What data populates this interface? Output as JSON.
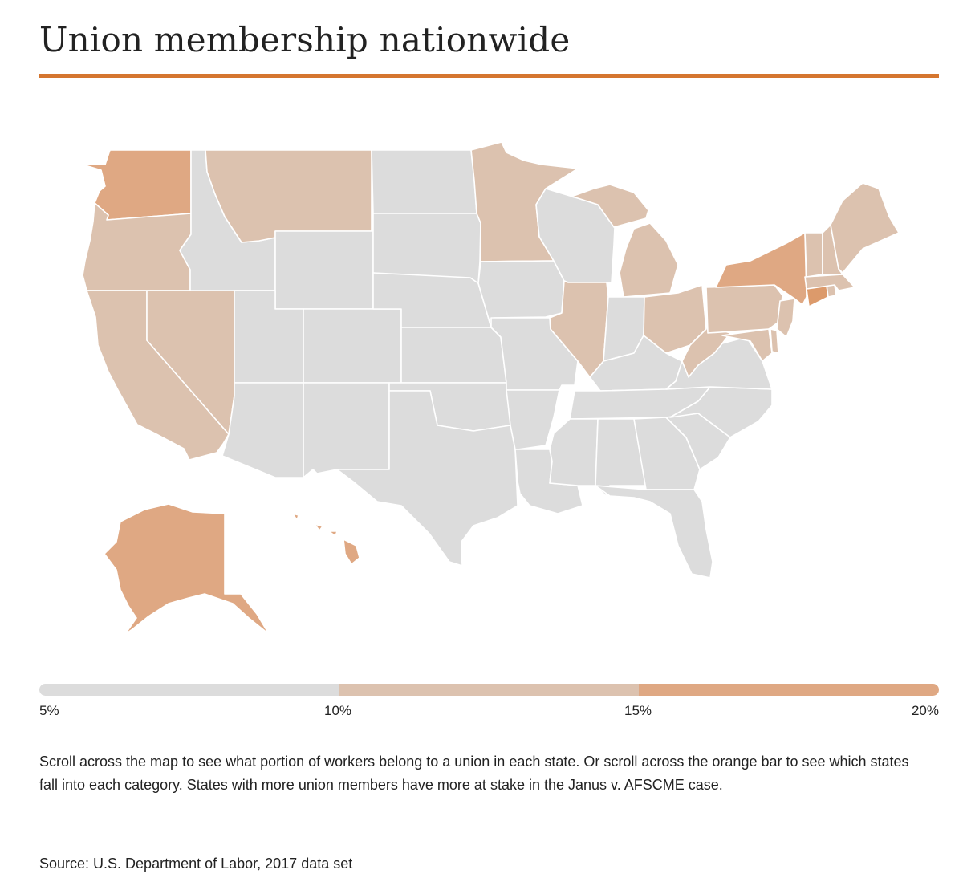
{
  "header": {
    "title": "Union membership nationwide"
  },
  "colors": {
    "accent": "#d5762f",
    "low": "#dcdcdc",
    "mid": "#dcc2af",
    "high": "#dfa883",
    "highest": "#dc9a6b"
  },
  "legend": {
    "ticks": [
      "5%",
      "10%",
      "15%",
      "20%"
    ],
    "bins": [
      {
        "from": 5,
        "to": 10,
        "color_key": "low"
      },
      {
        "from": 10,
        "to": 15,
        "color_key": "mid"
      },
      {
        "from": 15,
        "to": 20,
        "color_key": "high"
      }
    ]
  },
  "map": {
    "states": [
      {
        "abbr": "WA",
        "bin": "high"
      },
      {
        "abbr": "OR",
        "bin": "mid"
      },
      {
        "abbr": "CA",
        "bin": "mid"
      },
      {
        "abbr": "NV",
        "bin": "mid"
      },
      {
        "abbr": "ID",
        "bin": "low"
      },
      {
        "abbr": "MT",
        "bin": "mid"
      },
      {
        "abbr": "WY",
        "bin": "low"
      },
      {
        "abbr": "UT",
        "bin": "low"
      },
      {
        "abbr": "AZ",
        "bin": "low"
      },
      {
        "abbr": "CO",
        "bin": "low"
      },
      {
        "abbr": "NM",
        "bin": "low"
      },
      {
        "abbr": "ND",
        "bin": "low"
      },
      {
        "abbr": "SD",
        "bin": "low"
      },
      {
        "abbr": "NE",
        "bin": "low"
      },
      {
        "abbr": "KS",
        "bin": "low"
      },
      {
        "abbr": "OK",
        "bin": "low"
      },
      {
        "abbr": "TX",
        "bin": "low"
      },
      {
        "abbr": "MN",
        "bin": "mid"
      },
      {
        "abbr": "IA",
        "bin": "low"
      },
      {
        "abbr": "MO",
        "bin": "low"
      },
      {
        "abbr": "AR",
        "bin": "low"
      },
      {
        "abbr": "LA",
        "bin": "low"
      },
      {
        "abbr": "WI",
        "bin": "low"
      },
      {
        "abbr": "IL",
        "bin": "mid"
      },
      {
        "abbr": "MI",
        "bin": "mid"
      },
      {
        "abbr": "IN",
        "bin": "low"
      },
      {
        "abbr": "OH",
        "bin": "mid"
      },
      {
        "abbr": "KY",
        "bin": "low"
      },
      {
        "abbr": "TN",
        "bin": "low"
      },
      {
        "abbr": "MS",
        "bin": "low"
      },
      {
        "abbr": "AL",
        "bin": "low"
      },
      {
        "abbr": "GA",
        "bin": "low"
      },
      {
        "abbr": "FL",
        "bin": "low"
      },
      {
        "abbr": "SC",
        "bin": "low"
      },
      {
        "abbr": "NC",
        "bin": "low"
      },
      {
        "abbr": "VA",
        "bin": "low"
      },
      {
        "abbr": "WV",
        "bin": "mid"
      },
      {
        "abbr": "PA",
        "bin": "mid"
      },
      {
        "abbr": "NY",
        "bin": "high"
      },
      {
        "abbr": "NJ",
        "bin": "mid"
      },
      {
        "abbr": "DE",
        "bin": "mid"
      },
      {
        "abbr": "MD",
        "bin": "mid"
      },
      {
        "abbr": "CT",
        "bin": "highest"
      },
      {
        "abbr": "RI",
        "bin": "mid"
      },
      {
        "abbr": "MA",
        "bin": "mid"
      },
      {
        "abbr": "VT",
        "bin": "mid"
      },
      {
        "abbr": "NH",
        "bin": "mid"
      },
      {
        "abbr": "ME",
        "bin": "mid"
      },
      {
        "abbr": "AK",
        "bin": "high"
      },
      {
        "abbr": "HI",
        "bin": "high"
      }
    ]
  },
  "description": "Scroll across the map to see what portion of workers belong to a union in each state. Or scroll across the orange bar to see which states fall into each category. States with more union members have more at stake in the Janus v. AFSCME case.",
  "source": "Source: U.S. Department of Labor, 2017 data set"
}
